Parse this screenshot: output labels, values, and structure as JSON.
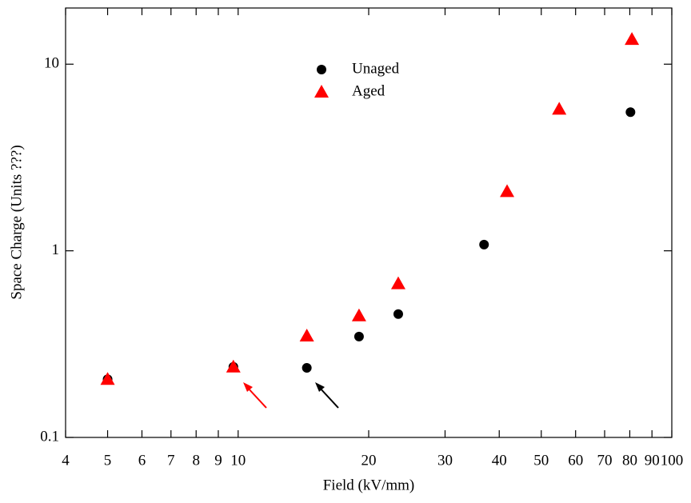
{
  "chart_data": {
    "type": "scatter",
    "x_label": "Field (kV/mm)",
    "y_label": "Space Charge (Units  ???)",
    "xscale": "log",
    "yscale": "log",
    "xlim": [
      4,
      100
    ],
    "ylim": [
      0.1,
      20
    ],
    "xticks": [
      4,
      5,
      6,
      7,
      8,
      9,
      10,
      20,
      30,
      40,
      50,
      60,
      70,
      80,
      90,
      100
    ],
    "yticks": [
      0.1,
      1,
      10
    ],
    "legend": "upper center",
    "series": [
      {
        "name": "Unaged",
        "color": "#000000",
        "marker": "circle",
        "x": [
          5,
          9.75,
          14.4,
          19.0,
          23.4,
          36.9,
          80.3
        ],
        "values": [
          0.205,
          0.239,
          0.236,
          0.347,
          0.458,
          1.08,
          5.53
        ]
      },
      {
        "name": "Aged",
        "color": "#ff0000",
        "marker": "triangle",
        "x": [
          5,
          9.75,
          14.4,
          19.0,
          23.4,
          41.7,
          55.0,
          80.9
        ],
        "values": [
          0.205,
          0.239,
          0.35,
          0.449,
          0.667,
          2.08,
          5.75,
          13.6
        ]
      }
    ]
  }
}
